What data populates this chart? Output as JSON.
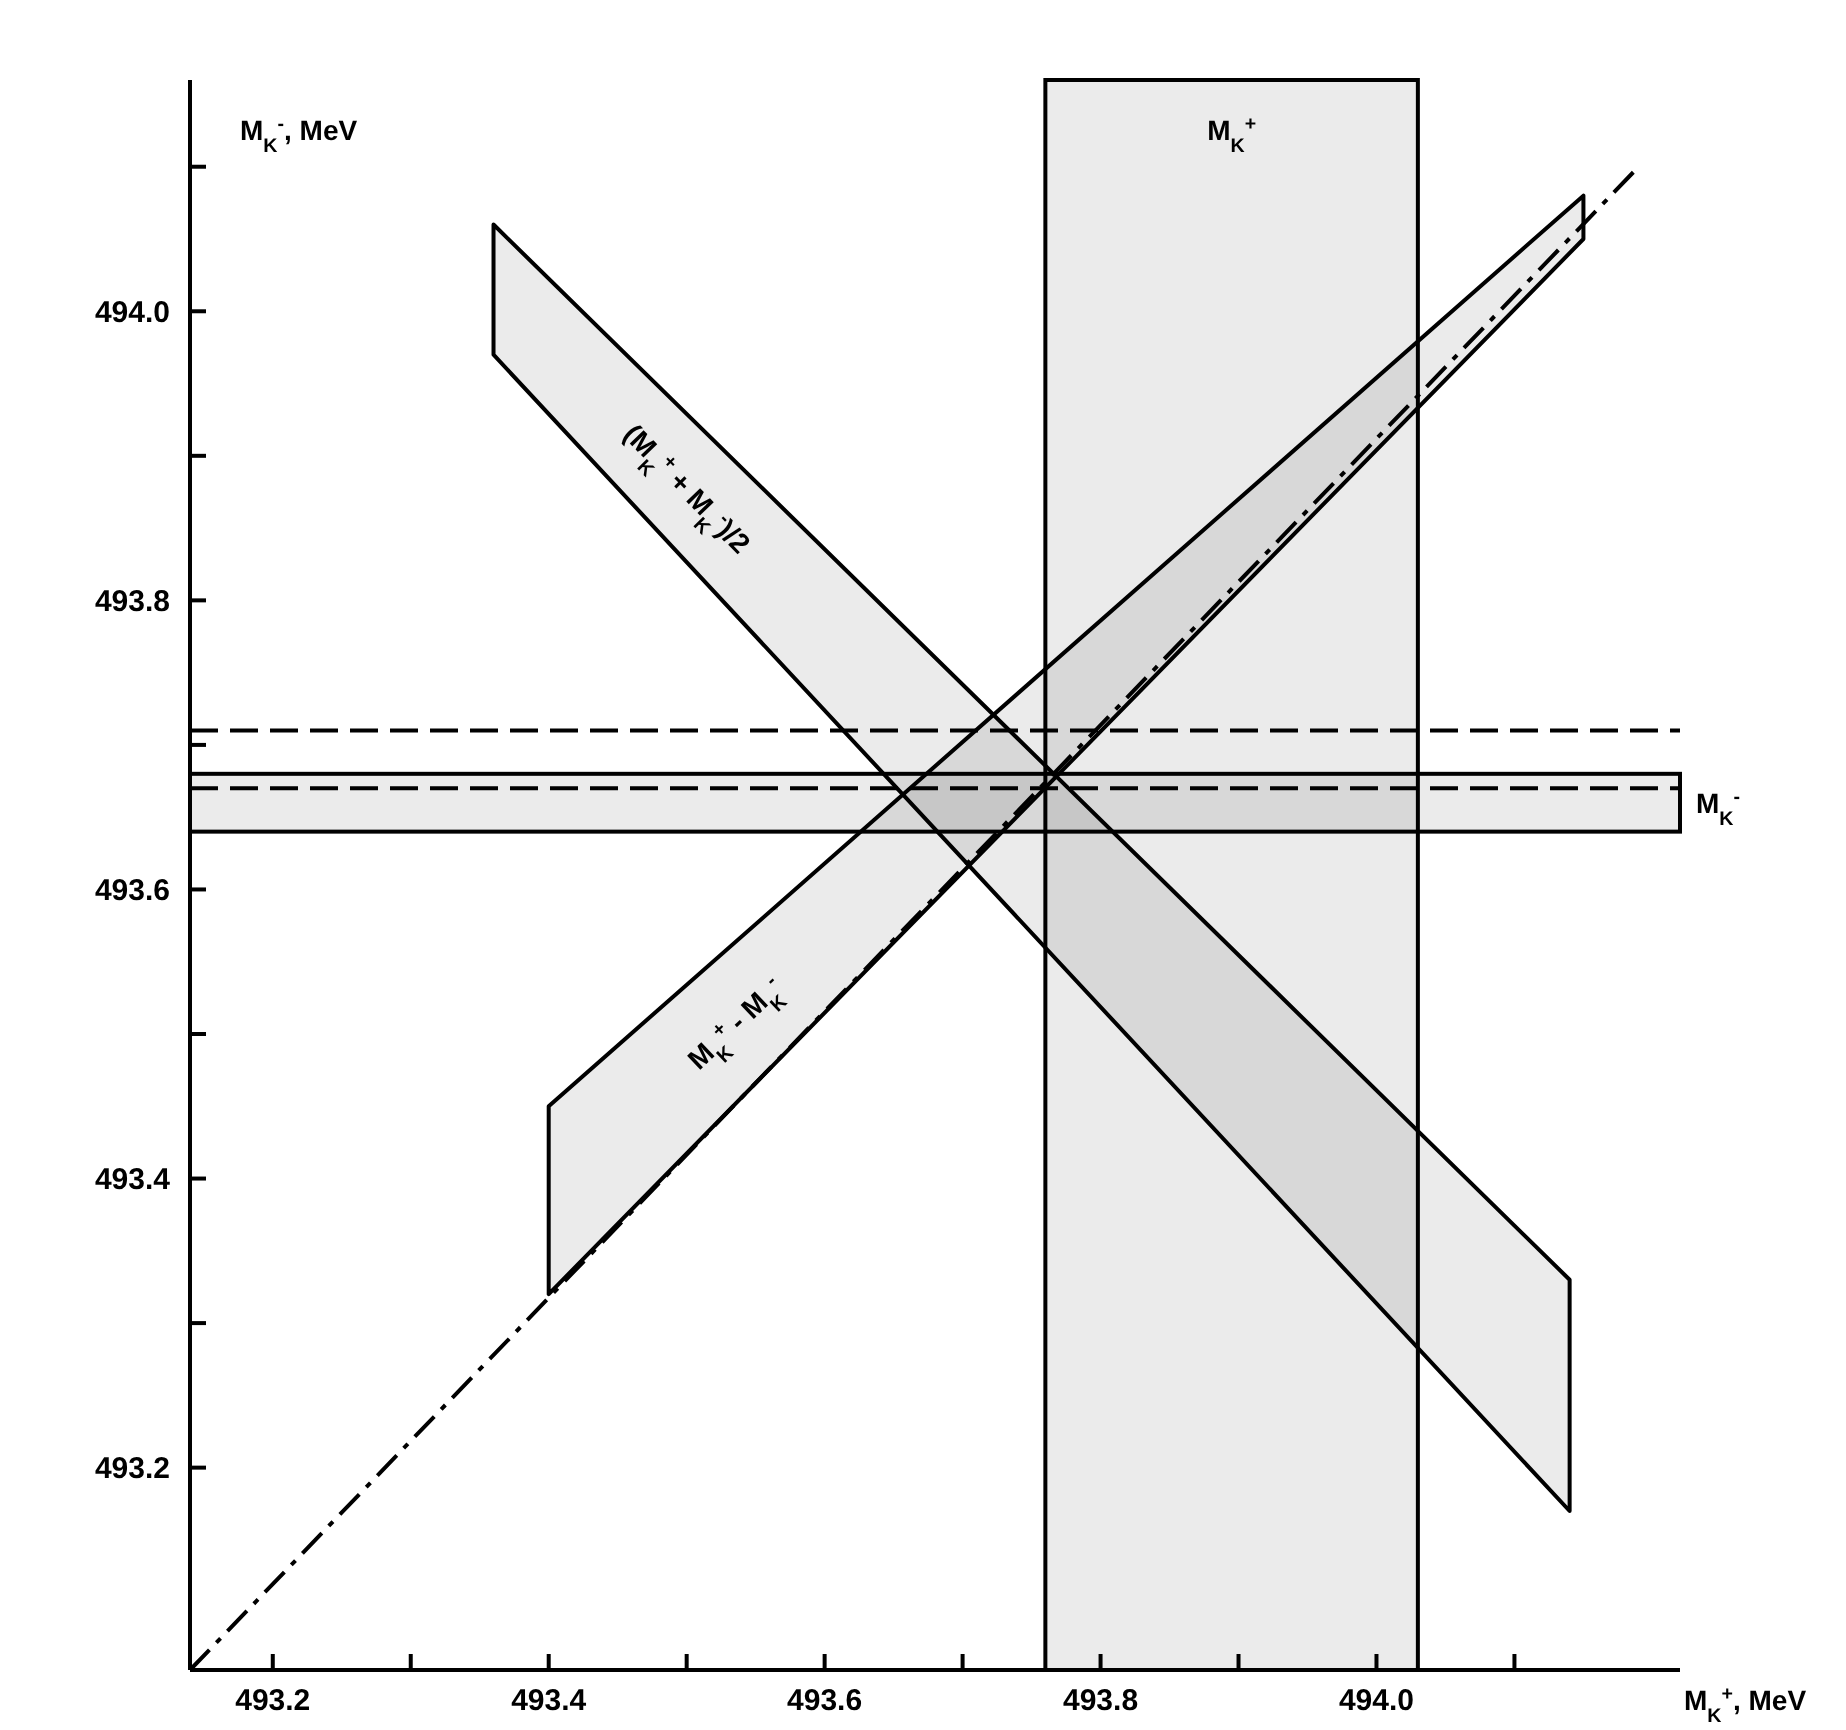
{
  "chart_data": {
    "type": "line",
    "xlabel": "M$_{K}$$^{+}$, MeV",
    "ylabel": "M$_{K}$$^{-}$, MeV",
    "xlim": [
      493.14,
      494.22
    ],
    "ylim": [
      493.06,
      494.16
    ],
    "xticks": [
      493.2,
      {
        "value": 493.3,
        "label": null
      },
      493.4,
      {
        "value": 493.5,
        "label": null
      },
      493.6,
      {
        "value": 493.7,
        "label": null
      },
      493.8,
      {
        "value": 493.9,
        "label": null
      },
      {
        "value": 494.0,
        "label": "494.0"
      },
      {
        "value": 494.1,
        "label": null
      }
    ],
    "yticks": [
      493.2,
      {
        "value": 493.3,
        "label": null
      },
      493.4,
      {
        "value": 493.5,
        "label": null
      },
      493.6,
      {
        "value": 493.7,
        "label": null
      },
      493.8,
      {
        "value": 493.9,
        "label": null
      },
      {
        "value": 494.0,
        "label": "494.0"
      },
      {
        "value": 494.1,
        "label": null
      }
    ],
    "series": [
      {
        "type": "area",
        "name": "M$_{K}$$^{+}$ - M$_{K}$$^{-}$",
        "color": "#000000",
        "x": [
          493.4,
          494.15
        ],
        "values": [
          null,
          null
        ],
        "lower": [
          493.32,
          494.05
        ],
        "upper": [
          493.45,
          494.08
        ]
      },
      {
        "type": "area",
        "name": "(M$_{K}$$^{+}$ + M$_{K}$$^{-}$)/2",
        "color": "#000000",
        "x": [
          493.36,
          494.14
        ],
        "values": [
          null,
          null
        ],
        "lower": [
          493.97,
          493.17
        ],
        "upper": [
          494.06,
          493.33
        ]
      },
      {
        "color": "#000000",
        "line_style": "dashed",
        "x": [
          493.14,
          494.19
        ],
        "values": [
          493.06,
          494.1
        ]
      }
    ],
    "bands": [
      {
        "axis": "x",
        "from": 493.76,
        "to": 494.03,
        "label": "M$_{K}$$^{+}$",
        "color": "#000000"
      },
      {
        "axis": "y",
        "from": 493.64,
        "to": 493.68,
        "label": "M$_{K}$$^{-}$",
        "color": "#000000"
      }
    ],
    "ref_lines": [
      {
        "axis": "y",
        "value": 493.67,
        "line_style": "dashed",
        "color": "#000000"
      },
      {
        "axis": "y",
        "value": 493.71,
        "line_style": "dashed",
        "color": "#000000"
      }
    ]
  }
}
